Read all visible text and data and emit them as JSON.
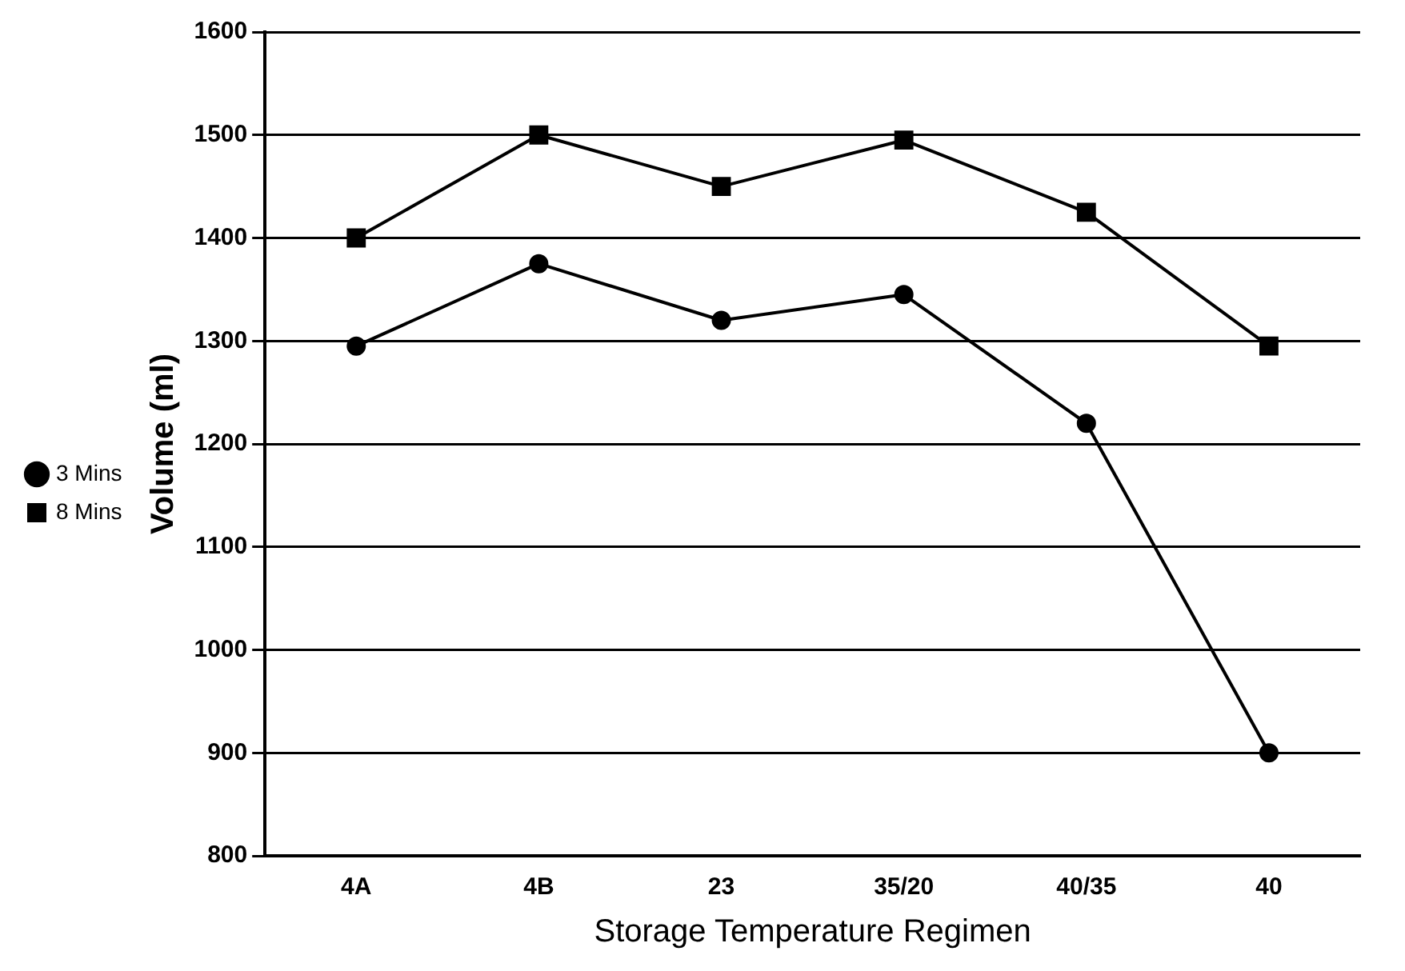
{
  "chart_data": {
    "type": "line",
    "xlabel": "Storage Temperature Regimen",
    "ylabel": "Volume (ml)",
    "categories": [
      "4A",
      "4B",
      "23",
      "35/20",
      "40/35",
      "40"
    ],
    "series": [
      {
        "name": "3 Mins",
        "color": "#000000",
        "marker": "circle",
        "values": [
          1295,
          1375,
          1320,
          1345,
          1220,
          900
        ]
      },
      {
        "name": "8 Mins",
        "color": "#000000",
        "marker": "square",
        "values": [
          1400,
          1500,
          1450,
          1495,
          1425,
          1295
        ]
      }
    ],
    "ylim": [
      800,
      1600
    ],
    "yticks": [
      800,
      900,
      1000,
      1100,
      1200,
      1300,
      1400,
      1500,
      1600
    ],
    "grid": "y",
    "legend": "left",
    "line_style": "solid"
  }
}
